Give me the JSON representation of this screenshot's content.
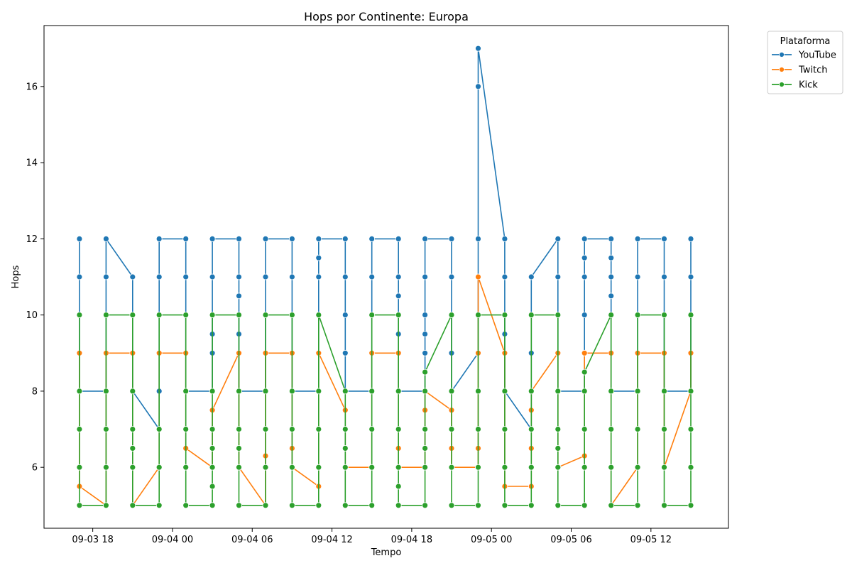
{
  "chart_data": {
    "type": "line",
    "title": "Hops por Continente: Europa",
    "xlabel": "Tempo",
    "ylabel": "Hops",
    "xlim": [
      "2024-09-03 14:20",
      "2024-09-05 17:50"
    ],
    "ylim": [
      4.4,
      17.6
    ],
    "x_ticks": [
      "09-03 18",
      "09-04 00",
      "09-04 06",
      "09-04 12",
      "09-04 18",
      "09-05 00",
      "09-05 06",
      "09-05 12"
    ],
    "y_ticks": [
      6,
      8,
      10,
      12,
      14,
      16
    ],
    "grid": false,
    "legend": {
      "title": "Plataforma",
      "placement": "outside-top-right"
    },
    "series": [
      {
        "name": "YouTube",
        "color": "#1f77b4",
        "points": [
          {
            "t": "2024-09-03 17:00",
            "y": [
              8,
              9,
              10,
              11,
              12
            ]
          },
          {
            "t": "2024-09-03 19:00",
            "y": [
              8,
              9,
              10,
              11,
              12
            ]
          },
          {
            "t": "2024-09-03 21:00",
            "y": [
              8,
              9,
              10,
              11
            ]
          },
          {
            "t": "2024-09-03 23:00",
            "y": [
              7,
              8,
              9,
              10,
              11,
              12
            ]
          },
          {
            "t": "2024-09-04 01:00",
            "y": [
              8,
              9,
              10,
              11,
              12
            ]
          },
          {
            "t": "2024-09-04 03:00",
            "y": [
              8,
              9,
              9.5,
              10,
              11,
              12
            ]
          },
          {
            "t": "2024-09-04 05:00",
            "y": [
              8,
              9,
              9.5,
              10,
              10.5,
              11,
              12
            ]
          },
          {
            "t": "2024-09-04 07:00",
            "y": [
              8,
              9,
              10,
              11,
              12
            ]
          },
          {
            "t": "2024-09-04 09:00",
            "y": [
              8,
              9,
              10,
              11,
              12
            ]
          },
          {
            "t": "2024-09-04 11:00",
            "y": [
              8,
              9,
              10,
              11,
              11.5,
              12
            ]
          },
          {
            "t": "2024-09-04 13:00",
            "y": [
              8,
              9,
              10,
              11,
              12
            ]
          },
          {
            "t": "2024-09-04 15:00",
            "y": [
              8,
              9,
              10,
              11,
              12
            ]
          },
          {
            "t": "2024-09-04 17:00",
            "y": [
              8,
              9,
              9.5,
              10,
              10.5,
              11,
              12
            ]
          },
          {
            "t": "2024-09-04 19:00",
            "y": [
              8,
              9,
              9.5,
              10,
              11,
              12
            ]
          },
          {
            "t": "2024-09-04 21:00",
            "y": [
              8,
              9,
              10,
              11,
              12
            ]
          },
          {
            "t": "2024-09-04 23:00",
            "y": [
              9,
              10,
              11,
              12,
              16,
              17
            ]
          },
          {
            "t": "2024-09-05 01:00",
            "y": [
              8,
              9,
              9.5,
              10,
              11,
              12
            ]
          },
          {
            "t": "2024-09-05 03:00",
            "y": [
              7,
              8,
              9,
              10,
              11
            ]
          },
          {
            "t": "2024-09-05 05:00",
            "y": [
              8,
              9,
              10,
              11,
              12
            ]
          },
          {
            "t": "2024-09-05 07:00",
            "y": [
              8,
              9,
              10,
              11,
              11.5,
              12
            ]
          },
          {
            "t": "2024-09-05 09:00",
            "y": [
              8,
              9,
              10,
              10.5,
              11,
              11.5,
              12
            ]
          },
          {
            "t": "2024-09-05 11:00",
            "y": [
              8,
              9,
              10,
              11,
              12
            ]
          },
          {
            "t": "2024-09-05 13:00",
            "y": [
              8,
              9,
              10,
              11,
              12
            ]
          },
          {
            "t": "2024-09-05 15:00",
            "y": [
              8,
              9,
              10,
              11,
              12
            ]
          }
        ]
      },
      {
        "name": "Twitch",
        "color": "#ff7f0e",
        "points": [
          {
            "t": "2024-09-03 17:00",
            "y": [
              5.5,
              7,
              9
            ]
          },
          {
            "t": "2024-09-03 19:00",
            "y": [
              5,
              6,
              9
            ]
          },
          {
            "t": "2024-09-03 21:00",
            "y": [
              5,
              6,
              9
            ]
          },
          {
            "t": "2024-09-03 23:00",
            "y": [
              6,
              7,
              9
            ]
          },
          {
            "t": "2024-09-04 01:00",
            "y": [
              6.5,
              7,
              9
            ]
          },
          {
            "t": "2024-09-04 03:00",
            "y": [
              6,
              7.5
            ]
          },
          {
            "t": "2024-09-04 05:00",
            "y": [
              6,
              8,
              9
            ]
          },
          {
            "t": "2024-09-04 07:00",
            "y": [
              5,
              6,
              6.3,
              9
            ]
          },
          {
            "t": "2024-09-04 09:00",
            "y": [
              6,
              6.5,
              9
            ]
          },
          {
            "t": "2024-09-04 11:00",
            "y": [
              5.5,
              6,
              9
            ]
          },
          {
            "t": "2024-09-04 13:00",
            "y": [
              6,
              7.5
            ]
          },
          {
            "t": "2024-09-04 15:00",
            "y": [
              6,
              8,
              9
            ]
          },
          {
            "t": "2024-09-04 17:00",
            "y": [
              6,
              6.5,
              9
            ]
          },
          {
            "t": "2024-09-04 19:00",
            "y": [
              6,
              7.5,
              8
            ]
          },
          {
            "t": "2024-09-04 21:00",
            "y": [
              6,
              6.5,
              7.5
            ]
          },
          {
            "t": "2024-09-04 23:00",
            "y": [
              6,
              6.5,
              9,
              11
            ]
          },
          {
            "t": "2024-09-05 01:00",
            "y": [
              5.5,
              6,
              7,
              9
            ]
          },
          {
            "t": "2024-09-05 03:00",
            "y": [
              5.5,
              6.5,
              7.5,
              8
            ]
          },
          {
            "t": "2024-09-05 05:00",
            "y": [
              6,
              8,
              9
            ]
          },
          {
            "t": "2024-09-05 07:00",
            "y": [
              6.3,
              8,
              9
            ]
          },
          {
            "t": "2024-09-05 09:00",
            "y": [
              5,
              6,
              9
            ]
          },
          {
            "t": "2024-09-05 11:00",
            "y": [
              6,
              8,
              9
            ]
          },
          {
            "t": "2024-09-05 13:00",
            "y": [
              6,
              9
            ]
          },
          {
            "t": "2024-09-05 15:00",
            "y": [
              8,
              9
            ]
          }
        ]
      },
      {
        "name": "Kick",
        "color": "#2ca02c",
        "points": [
          {
            "t": "2024-09-03 17:00",
            "y": [
              5,
              6,
              7,
              8,
              10
            ]
          },
          {
            "t": "2024-09-03 19:00",
            "y": [
              5,
              6,
              7,
              8,
              10
            ]
          },
          {
            "t": "2024-09-03 21:00",
            "y": [
              5,
              6,
              6.5,
              7,
              8,
              10
            ]
          },
          {
            "t": "2024-09-03 23:00",
            "y": [
              5,
              6,
              7,
              10
            ]
          },
          {
            "t": "2024-09-04 01:00",
            "y": [
              5,
              6,
              7,
              8,
              10
            ]
          },
          {
            "t": "2024-09-04 03:00",
            "y": [
              5,
              5.5,
              6,
              6.5,
              7,
              8,
              10
            ]
          },
          {
            "t": "2024-09-04 05:00",
            "y": [
              5,
              6,
              6.5,
              7,
              8,
              10
            ]
          },
          {
            "t": "2024-09-04 07:00",
            "y": [
              5,
              6,
              7,
              8,
              10
            ]
          },
          {
            "t": "2024-09-04 09:00",
            "y": [
              5,
              6,
              7,
              8,
              10
            ]
          },
          {
            "t": "2024-09-04 11:00",
            "y": [
              5,
              6,
              7,
              8,
              10
            ]
          },
          {
            "t": "2024-09-04 13:00",
            "y": [
              5,
              6,
              6.5,
              7,
              8
            ]
          },
          {
            "t": "2024-09-04 15:00",
            "y": [
              5,
              6,
              7,
              8,
              10
            ]
          },
          {
            "t": "2024-09-04 17:00",
            "y": [
              5,
              5.5,
              6,
              7,
              8,
              10
            ]
          },
          {
            "t": "2024-09-04 19:00",
            "y": [
              5,
              6,
              6.5,
              7,
              8,
              8.5
            ]
          },
          {
            "t": "2024-09-04 21:00",
            "y": [
              5,
              6,
              7,
              8,
              10
            ]
          },
          {
            "t": "2024-09-04 23:00",
            "y": [
              5,
              6,
              7,
              8,
              10
            ]
          },
          {
            "t": "2024-09-05 01:00",
            "y": [
              5,
              6,
              7,
              8,
              10
            ]
          },
          {
            "t": "2024-09-05 03:00",
            "y": [
              5,
              6,
              7,
              8,
              10
            ]
          },
          {
            "t": "2024-09-05 05:00",
            "y": [
              5,
              6,
              6.5,
              7,
              8,
              10
            ]
          },
          {
            "t": "2024-09-05 07:00",
            "y": [
              5,
              6,
              7,
              8,
              8.5
            ]
          },
          {
            "t": "2024-09-05 09:00",
            "y": [
              5,
              6,
              7,
              8,
              10
            ]
          },
          {
            "t": "2024-09-05 11:00",
            "y": [
              5,
              6,
              7,
              8,
              10
            ]
          },
          {
            "t": "2024-09-05 13:00",
            "y": [
              5,
              6,
              7,
              8,
              10
            ]
          },
          {
            "t": "2024-09-05 15:00",
            "y": [
              5,
              6,
              7,
              8,
              10
            ]
          }
        ]
      }
    ]
  }
}
